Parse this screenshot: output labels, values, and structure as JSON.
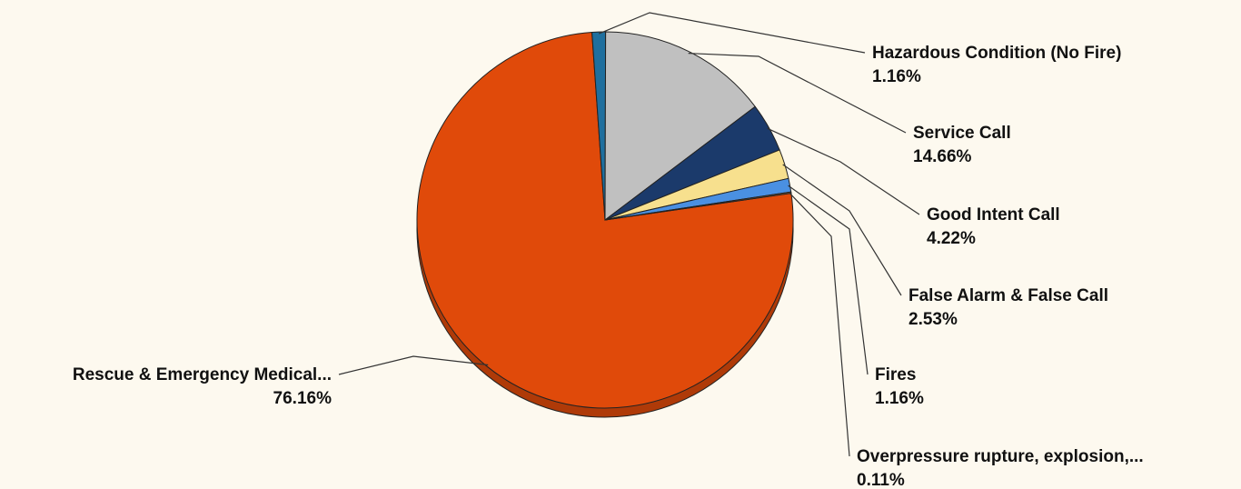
{
  "chart_data": {
    "type": "pie",
    "title": "",
    "slices": [
      {
        "label": "Rescue & Emergency Medical...",
        "value": 76.16,
        "display": "76.16%",
        "color": "#e04a0a"
      },
      {
        "label": "Hazardous Condition (No Fire)",
        "value": 1.16,
        "display": "1.16%",
        "color": "#1f6f9e"
      },
      {
        "label": "Service Call",
        "value": 14.66,
        "display": "14.66%",
        "color": "#c0c0c0"
      },
      {
        "label": "Good Intent Call",
        "value": 4.22,
        "display": "4.22%",
        "color": "#1b3a6b"
      },
      {
        "label": "False Alarm & False Call",
        "value": 2.53,
        "display": "2.53%",
        "color": "#f7e08e"
      },
      {
        "label": "Fires",
        "value": 1.16,
        "display": "1.16%",
        "color": "#4a90e2"
      },
      {
        "label": "Overpressure  rupture,  explosion,...",
        "value": 0.11,
        "display": "0.11%",
        "color": "#8a5a2b"
      }
    ],
    "legend": "none",
    "data_labels": "outside-with-leader-lines"
  }
}
